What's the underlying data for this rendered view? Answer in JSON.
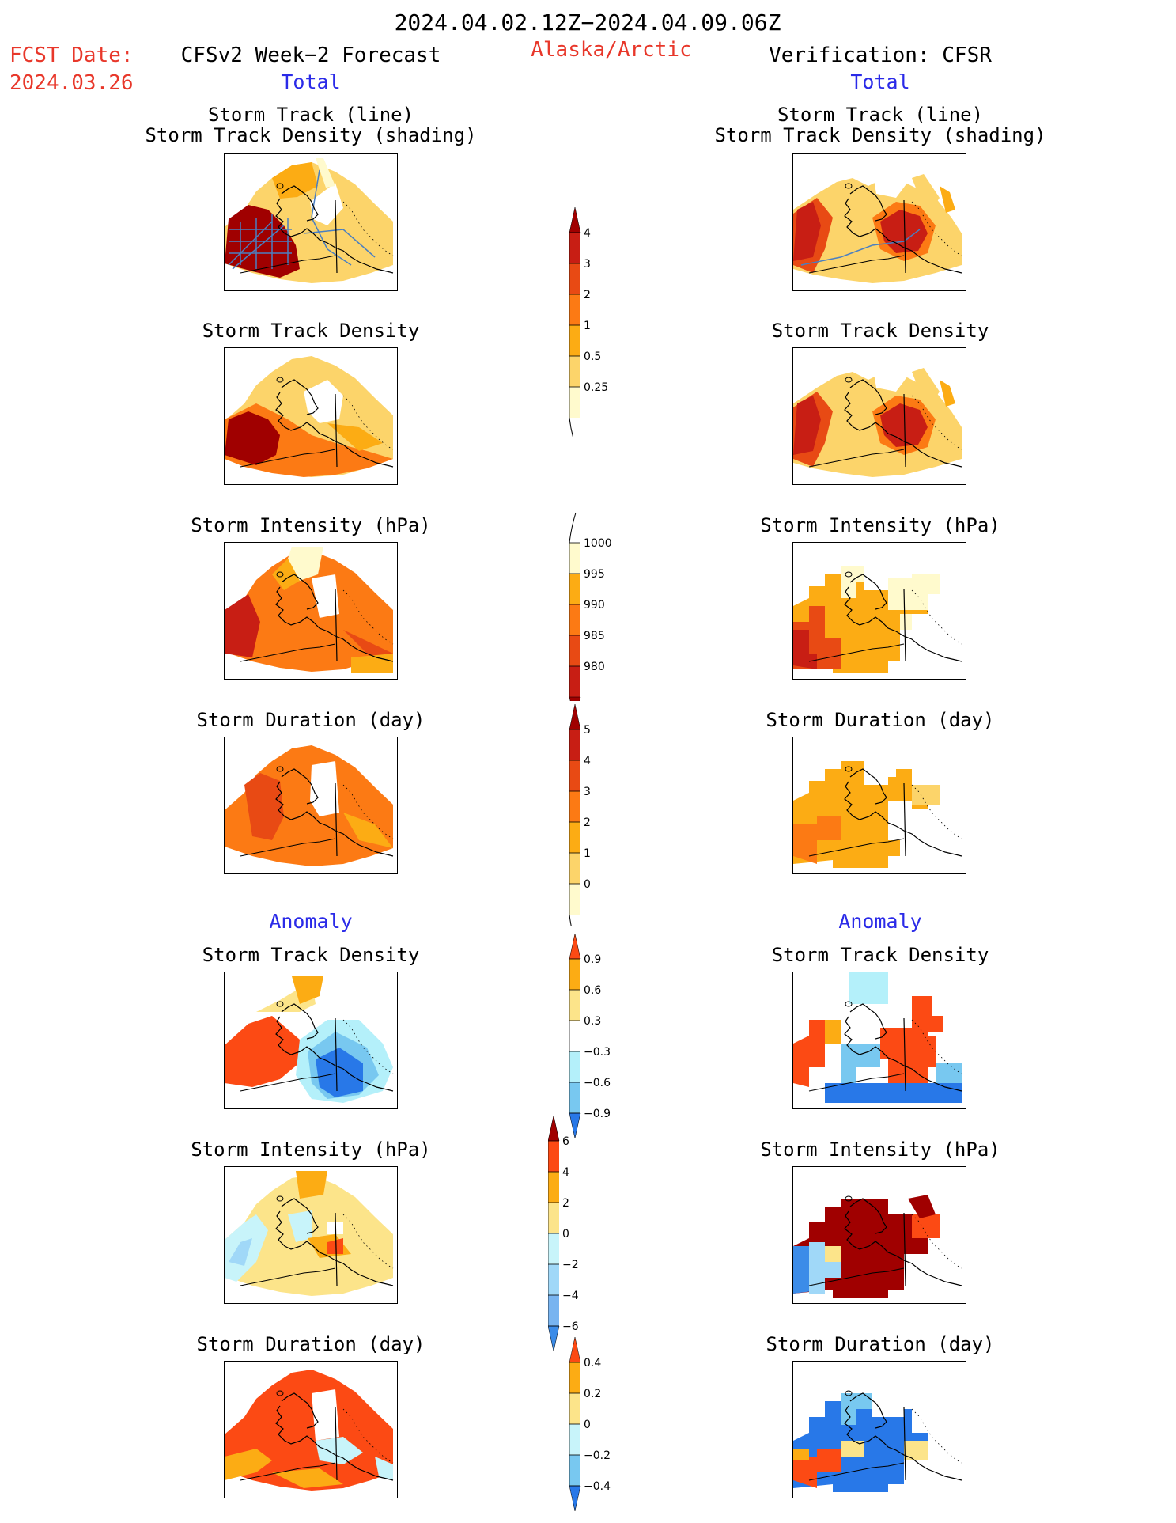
{
  "header": {
    "period": "2024.04.02.12Z−2024.04.09.06Z",
    "fcst_label": "FCST Date:",
    "fcst_date": "2024.03.26",
    "left_title": "CFSv2 Week−2 Forecast",
    "region": "Alaska/Arctic",
    "right_title": "Verification: CFSR",
    "total_left": "Total",
    "total_right": "Total",
    "anomaly_left": "Anomaly",
    "anomaly_right": "Anomaly"
  },
  "panels": {
    "st_line_1": "Storm Track (line)",
    "st_line_2": "Storm Track Density (shading)",
    "std": "Storm Track Density",
    "si": "Storm Intensity (hPa)",
    "sd": "Storm Duration (day)"
  },
  "colorbars": {
    "density": {
      "labels": [
        "4",
        "3",
        "2",
        "1",
        "0.5",
        "0.25"
      ],
      "colors": [
        "#fffacd",
        "#fcd46a",
        "#fcac14",
        "#fc7a14",
        "#e84a14",
        "#c81e14",
        "#a00000"
      ]
    },
    "intensity": {
      "labels": [
        "1000",
        "995",
        "990",
        "985",
        "980"
      ],
      "colors": [
        "#fffacd",
        "#fcac14",
        "#fc7a14",
        "#e84a14",
        "#c81e14",
        "#a00000"
      ]
    },
    "duration": {
      "labels": [
        "5",
        "4",
        "3",
        "2",
        "1",
        "0"
      ],
      "colors": [
        "#fffacd",
        "#fcd46a",
        "#fcac14",
        "#fc7a14",
        "#e84a14",
        "#c81e14",
        "#a00000"
      ]
    },
    "anom_density": {
      "labels": [
        "0.9",
        "0.6",
        "0.3",
        "−0.3",
        "−0.6",
        "−0.9"
      ],
      "colors": [
        "#fc4a14",
        "#fcac14",
        "#fce48a",
        "#ffffff",
        "#b4f0fa",
        "#78c8f0",
        "#2878e8"
      ]
    },
    "anom_intensity": {
      "labels": [
        "6",
        "4",
        "2",
        "0",
        "−2",
        "−4",
        "−6"
      ],
      "colors": [
        "#a00000",
        "#fc4a14",
        "#fcac14",
        "#fce48a",
        "#c8f4fa",
        "#a0d8f8",
        "#78b4f0",
        "#3c8ce8"
      ]
    },
    "anom_duration": {
      "labels": [
        "0.4",
        "0.2",
        "0",
        "−0.2",
        "−0.4"
      ],
      "colors": [
        "#fc4a14",
        "#fcac14",
        "#fce48a",
        "#c8f4fa",
        "#78c8f0",
        "#2878e8"
      ]
    }
  }
}
